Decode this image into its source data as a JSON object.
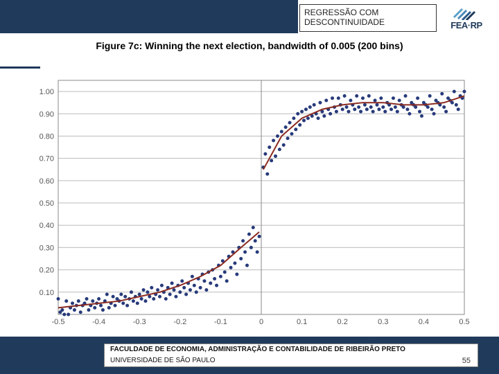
{
  "header": {
    "box_line1": "REGRESSÃO COM",
    "box_line2": "DESCONTINUIDADE",
    "logo_text": "FEA·RP"
  },
  "chart": {
    "type": "scatter",
    "title": "Figure 7c: Winning the next election, bandwidth of 0.005 (200 bins)",
    "xlim": [
      -0.5,
      0.5
    ],
    "ylim": [
      0.0,
      1.05
    ],
    "xticks": [
      -0.5,
      -0.4,
      -0.3,
      -0.2,
      -0.1,
      0,
      0.1,
      0.2,
      0.3,
      0.4,
      0.5
    ],
    "yticks": [
      0.1,
      0.2,
      0.3,
      0.4,
      0.5,
      0.6,
      0.7,
      0.8,
      0.9,
      1.0
    ],
    "xticklabels": [
      "-0.5",
      "-0.4",
      "-0.3",
      "-0.2",
      "-0.1",
      "0",
      "0.1",
      "0.2",
      "0.3",
      "0.4",
      "0.5"
    ],
    "yticklabels": [
      "0.10",
      "0.20",
      "0.30",
      "0.40",
      "0.50",
      "0.60",
      "0.70",
      "0.80",
      "0.90",
      "1.00"
    ],
    "grid_color": "#bbbbbb",
    "background_color": "#ffffff",
    "frame_color": "#888888",
    "point_color": "#273a7a",
    "point_radius": 2.5,
    "fit_color": "#8a2a20",
    "fit_width": 2,
    "cutoff_x": 0,
    "points_left": [
      [
        -0.5,
        0.07
      ],
      [
        -0.495,
        0.01
      ],
      [
        -0.49,
        0.02
      ],
      [
        -0.485,
        0.0
      ],
      [
        -0.48,
        0.06
      ],
      [
        -0.475,
        0.0
      ],
      [
        -0.47,
        0.03
      ],
      [
        -0.465,
        0.05
      ],
      [
        -0.46,
        0.02
      ],
      [
        -0.455,
        0.04
      ],
      [
        -0.45,
        0.06
      ],
      [
        -0.445,
        0.01
      ],
      [
        -0.44,
        0.04
      ],
      [
        -0.435,
        0.05
      ],
      [
        -0.43,
        0.07
      ],
      [
        -0.425,
        0.02
      ],
      [
        -0.42,
        0.04
      ],
      [
        -0.415,
        0.06
      ],
      [
        -0.41,
        0.03
      ],
      [
        -0.405,
        0.05
      ],
      [
        -0.4,
        0.07
      ],
      [
        -0.395,
        0.04
      ],
      [
        -0.39,
        0.02
      ],
      [
        -0.385,
        0.06
      ],
      [
        -0.38,
        0.09
      ],
      [
        -0.375,
        0.03
      ],
      [
        -0.37,
        0.05
      ],
      [
        -0.365,
        0.08
      ],
      [
        -0.36,
        0.04
      ],
      [
        -0.355,
        0.07
      ],
      [
        -0.35,
        0.06
      ],
      [
        -0.345,
        0.09
      ],
      [
        -0.34,
        0.05
      ],
      [
        -0.335,
        0.08
      ],
      [
        -0.33,
        0.04
      ],
      [
        -0.325,
        0.07
      ],
      [
        -0.32,
        0.1
      ],
      [
        -0.315,
        0.06
      ],
      [
        -0.31,
        0.08
      ],
      [
        -0.305,
        0.05
      ],
      [
        -0.3,
        0.09
      ],
      [
        -0.295,
        0.07
      ],
      [
        -0.29,
        0.11
      ],
      [
        -0.285,
        0.06
      ],
      [
        -0.28,
        0.1
      ],
      [
        -0.275,
        0.08
      ],
      [
        -0.27,
        0.12
      ],
      [
        -0.265,
        0.07
      ],
      [
        -0.26,
        0.09
      ],
      [
        -0.255,
        0.11
      ],
      [
        -0.25,
        0.08
      ],
      [
        -0.245,
        0.13
      ],
      [
        -0.24,
        0.1
      ],
      [
        -0.235,
        0.07
      ],
      [
        -0.23,
        0.12
      ],
      [
        -0.225,
        0.09
      ],
      [
        -0.22,
        0.14
      ],
      [
        -0.215,
        0.11
      ],
      [
        -0.21,
        0.08
      ],
      [
        -0.205,
        0.13
      ],
      [
        -0.2,
        0.1
      ],
      [
        -0.195,
        0.15
      ],
      [
        -0.19,
        0.12
      ],
      [
        -0.185,
        0.09
      ],
      [
        -0.18,
        0.14
      ],
      [
        -0.175,
        0.11
      ],
      [
        -0.17,
        0.17
      ],
      [
        -0.165,
        0.13
      ],
      [
        -0.16,
        0.1
      ],
      [
        -0.155,
        0.16
      ],
      [
        -0.15,
        0.12
      ],
      [
        -0.145,
        0.18
      ],
      [
        -0.14,
        0.15
      ],
      [
        -0.135,
        0.11
      ],
      [
        -0.13,
        0.19
      ],
      [
        -0.125,
        0.14
      ],
      [
        -0.12,
        0.2
      ],
      [
        -0.115,
        0.16
      ],
      [
        -0.11,
        0.13
      ],
      [
        -0.105,
        0.22
      ],
      [
        -0.1,
        0.17
      ],
      [
        -0.095,
        0.24
      ],
      [
        -0.09,
        0.19
      ],
      [
        -0.085,
        0.15
      ],
      [
        -0.08,
        0.26
      ],
      [
        -0.075,
        0.21
      ],
      [
        -0.07,
        0.28
      ],
      [
        -0.065,
        0.23
      ],
      [
        -0.06,
        0.18
      ],
      [
        -0.055,
        0.3
      ],
      [
        -0.05,
        0.25
      ],
      [
        -0.045,
        0.33
      ],
      [
        -0.04,
        0.28
      ],
      [
        -0.035,
        0.22
      ],
      [
        -0.03,
        0.36
      ],
      [
        -0.025,
        0.3
      ],
      [
        -0.02,
        0.39
      ],
      [
        -0.015,
        0.33
      ],
      [
        -0.01,
        0.28
      ],
      [
        -0.005,
        0.35
      ]
    ],
    "points_right": [
      [
        0.005,
        0.66
      ],
      [
        0.01,
        0.72
      ],
      [
        0.015,
        0.63
      ],
      [
        0.02,
        0.75
      ],
      [
        0.025,
        0.69
      ],
      [
        0.03,
        0.78
      ],
      [
        0.035,
        0.71
      ],
      [
        0.04,
        0.8
      ],
      [
        0.045,
        0.74
      ],
      [
        0.05,
        0.82
      ],
      [
        0.055,
        0.76
      ],
      [
        0.06,
        0.84
      ],
      [
        0.065,
        0.79
      ],
      [
        0.07,
        0.86
      ],
      [
        0.075,
        0.81
      ],
      [
        0.08,
        0.88
      ],
      [
        0.085,
        0.83
      ],
      [
        0.09,
        0.9
      ],
      [
        0.095,
        0.85
      ],
      [
        0.1,
        0.91
      ],
      [
        0.105,
        0.87
      ],
      [
        0.11,
        0.92
      ],
      [
        0.115,
        0.88
      ],
      [
        0.12,
        0.93
      ],
      [
        0.125,
        0.89
      ],
      [
        0.13,
        0.94
      ],
      [
        0.135,
        0.9
      ],
      [
        0.14,
        0.88
      ],
      [
        0.145,
        0.95
      ],
      [
        0.15,
        0.91
      ],
      [
        0.155,
        0.89
      ],
      [
        0.16,
        0.96
      ],
      [
        0.165,
        0.92
      ],
      [
        0.17,
        0.9
      ],
      [
        0.175,
        0.97
      ],
      [
        0.18,
        0.93
      ],
      [
        0.185,
        0.91
      ],
      [
        0.19,
        0.97
      ],
      [
        0.195,
        0.94
      ],
      [
        0.2,
        0.92
      ],
      [
        0.205,
        0.98
      ],
      [
        0.21,
        0.93
      ],
      [
        0.215,
        0.91
      ],
      [
        0.22,
        0.96
      ],
      [
        0.225,
        0.94
      ],
      [
        0.23,
        0.92
      ],
      [
        0.235,
        0.98
      ],
      [
        0.24,
        0.93
      ],
      [
        0.245,
        0.91
      ],
      [
        0.25,
        0.97
      ],
      [
        0.255,
        0.94
      ],
      [
        0.26,
        0.92
      ],
      [
        0.265,
        0.98
      ],
      [
        0.27,
        0.93
      ],
      [
        0.275,
        0.91
      ],
      [
        0.28,
        0.96
      ],
      [
        0.285,
        0.94
      ],
      [
        0.29,
        0.92
      ],
      [
        0.295,
        0.97
      ],
      [
        0.3,
        0.93
      ],
      [
        0.305,
        0.91
      ],
      [
        0.31,
        0.95
      ],
      [
        0.315,
        0.94
      ],
      [
        0.32,
        0.92
      ],
      [
        0.325,
        0.97
      ],
      [
        0.33,
        0.93
      ],
      [
        0.335,
        0.91
      ],
      [
        0.34,
        0.96
      ],
      [
        0.345,
        0.94
      ],
      [
        0.35,
        0.93
      ],
      [
        0.355,
        0.98
      ],
      [
        0.36,
        0.92
      ],
      [
        0.365,
        0.9
      ],
      [
        0.37,
        0.95
      ],
      [
        0.375,
        0.94
      ],
      [
        0.38,
        0.93
      ],
      [
        0.385,
        0.97
      ],
      [
        0.39,
        0.91
      ],
      [
        0.395,
        0.89
      ],
      [
        0.4,
        0.95
      ],
      [
        0.405,
        0.94
      ],
      [
        0.41,
        0.93
      ],
      [
        0.415,
        0.98
      ],
      [
        0.42,
        0.92
      ],
      [
        0.425,
        0.9
      ],
      [
        0.43,
        0.96
      ],
      [
        0.435,
        0.95
      ],
      [
        0.44,
        0.94
      ],
      [
        0.445,
        0.99
      ],
      [
        0.45,
        0.93
      ],
      [
        0.455,
        0.91
      ],
      [
        0.46,
        0.97
      ],
      [
        0.465,
        0.96
      ],
      [
        0.47,
        0.95
      ],
      [
        0.475,
        1.0
      ],
      [
        0.48,
        0.94
      ],
      [
        0.485,
        0.92
      ],
      [
        0.49,
        0.98
      ],
      [
        0.495,
        0.97
      ],
      [
        0.5,
        1.0
      ]
    ],
    "fit_left": [
      [
        -0.5,
        0.03
      ],
      [
        -0.45,
        0.04
      ],
      [
        -0.4,
        0.05
      ],
      [
        -0.35,
        0.06
      ],
      [
        -0.3,
        0.08
      ],
      [
        -0.25,
        0.1
      ],
      [
        -0.2,
        0.13
      ],
      [
        -0.15,
        0.17
      ],
      [
        -0.1,
        0.22
      ],
      [
        -0.05,
        0.3
      ],
      [
        -0.005,
        0.37
      ]
    ],
    "fit_right": [
      [
        0.005,
        0.65
      ],
      [
        0.05,
        0.8
      ],
      [
        0.1,
        0.88
      ],
      [
        0.15,
        0.92
      ],
      [
        0.2,
        0.94
      ],
      [
        0.25,
        0.95
      ],
      [
        0.3,
        0.95
      ],
      [
        0.35,
        0.94
      ],
      [
        0.4,
        0.94
      ],
      [
        0.45,
        0.95
      ],
      [
        0.5,
        0.98
      ]
    ]
  },
  "footer": {
    "line1": "FACULDADE DE ECONOMIA, ADMINISTRAÇÃO E CONTABILIDADE DE RIBEIRÃO PRETO",
    "line2": "UNIVERSIDADE DE SÃO PAULO",
    "page": "55"
  }
}
